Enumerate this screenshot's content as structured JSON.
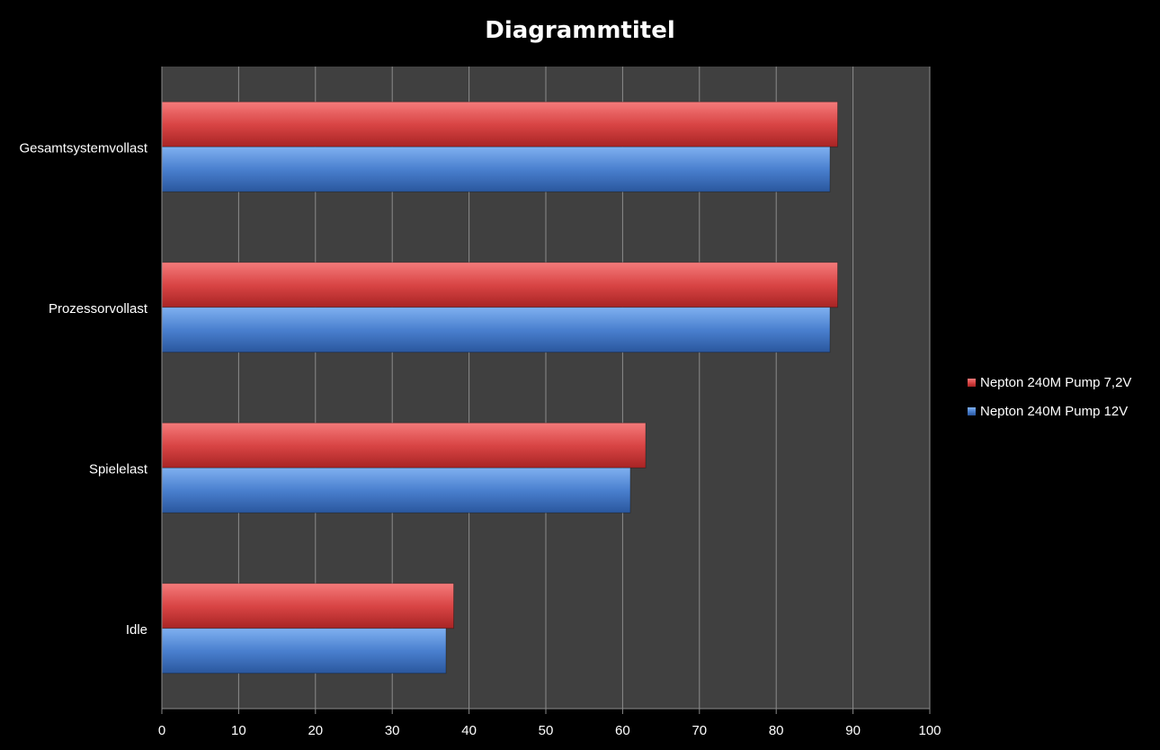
{
  "chart_data": {
    "type": "bar",
    "orientation": "horizontal",
    "title": "Diagrammtitel",
    "xlabel": "",
    "ylabel": "",
    "categories": [
      "Idle",
      "Spielelast",
      "Prozessorvollast",
      "Gesamtsystemvollast"
    ],
    "series": [
      {
        "name": "Nepton 240M Pump 12V",
        "color": "#3f72c0",
        "values": [
          37,
          61,
          87,
          87
        ]
      },
      {
        "name": "Nepton 240M Pump 7,2V",
        "color": "#d13b3b",
        "values": [
          38,
          63,
          88,
          88
        ]
      }
    ],
    "xlim": [
      0,
      100
    ],
    "xticks": [
      "0",
      "10",
      "20",
      "30",
      "40",
      "50",
      "60",
      "70",
      "80",
      "90",
      "100"
    ],
    "grid": true,
    "legend": "right"
  }
}
